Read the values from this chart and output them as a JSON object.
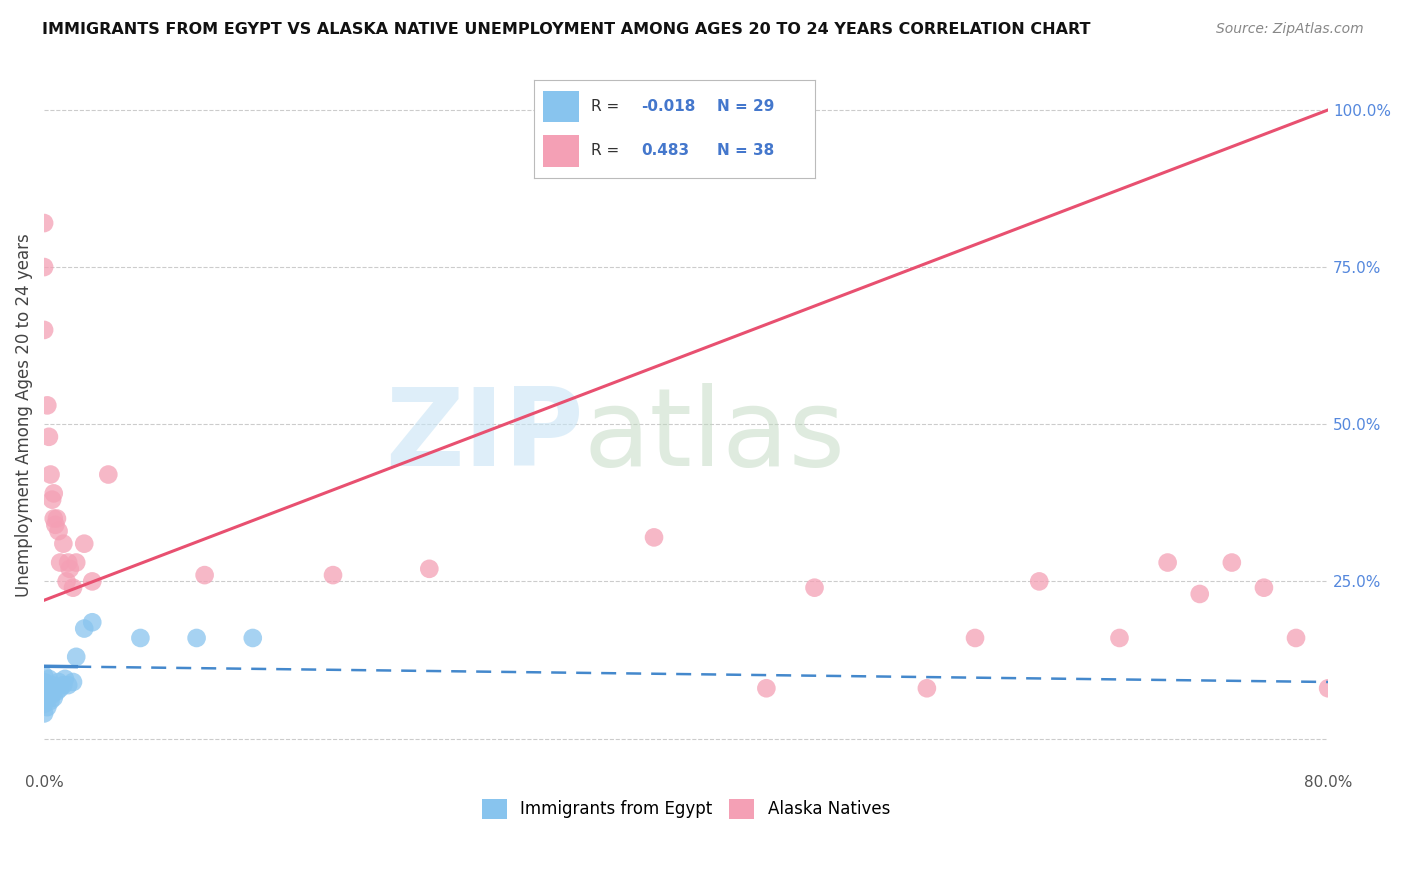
{
  "title": "IMMIGRANTS FROM EGYPT VS ALASKA NATIVE UNEMPLOYMENT AMONG AGES 20 TO 24 YEARS CORRELATION CHART",
  "source": "Source: ZipAtlas.com",
  "ylabel": "Unemployment Among Ages 20 to 24 years",
  "xlim": [
    0.0,
    0.8
  ],
  "ylim": [
    -0.05,
    1.08
  ],
  "yticks_right": [
    0.0,
    0.25,
    0.5,
    0.75,
    1.0
  ],
  "yticklabels_right": [
    "",
    "25.0%",
    "50.0%",
    "75.0%",
    "100.0%"
  ],
  "legend_R1": "-0.018",
  "legend_N1": "29",
  "legend_R2": "0.483",
  "legend_N2": "38",
  "blue_color": "#88C4EE",
  "pink_color": "#F4A0B5",
  "trend_blue_color": "#4488CC",
  "trend_pink_color": "#E85070",
  "blue_scatter_x": [
    0.0,
    0.0,
    0.0,
    0.0,
    0.0,
    0.0,
    0.002,
    0.002,
    0.003,
    0.003,
    0.004,
    0.004,
    0.005,
    0.005,
    0.006,
    0.006,
    0.008,
    0.009,
    0.01,
    0.012,
    0.013,
    0.015,
    0.018,
    0.02,
    0.025,
    0.03,
    0.06,
    0.095,
    0.13
  ],
  "blue_scatter_y": [
    0.04,
    0.055,
    0.065,
    0.075,
    0.09,
    0.1,
    0.05,
    0.065,
    0.08,
    0.095,
    0.06,
    0.075,
    0.07,
    0.085,
    0.065,
    0.08,
    0.075,
    0.09,
    0.08,
    0.085,
    0.095,
    0.085,
    0.09,
    0.13,
    0.175,
    0.185,
    0.16,
    0.16,
    0.16
  ],
  "pink_scatter_x": [
    0.0,
    0.0,
    0.0,
    0.002,
    0.003,
    0.004,
    0.005,
    0.006,
    0.006,
    0.007,
    0.008,
    0.009,
    0.01,
    0.012,
    0.014,
    0.015,
    0.016,
    0.018,
    0.02,
    0.025,
    0.03,
    0.04,
    0.1,
    0.18,
    0.24,
    0.38,
    0.45,
    0.48,
    0.55,
    0.58,
    0.62,
    0.67,
    0.7,
    0.72,
    0.74,
    0.76,
    0.78,
    0.8
  ],
  "pink_scatter_y": [
    0.65,
    0.75,
    0.82,
    0.53,
    0.48,
    0.42,
    0.38,
    0.35,
    0.39,
    0.34,
    0.35,
    0.33,
    0.28,
    0.31,
    0.25,
    0.28,
    0.27,
    0.24,
    0.28,
    0.31,
    0.25,
    0.42,
    0.26,
    0.26,
    0.27,
    0.32,
    0.08,
    0.24,
    0.08,
    0.16,
    0.25,
    0.16,
    0.28,
    0.23,
    0.28,
    0.24,
    0.16,
    0.08
  ],
  "pink_trend_x0": 0.0,
  "pink_trend_y0": 0.22,
  "pink_trend_x1": 0.8,
  "pink_trend_y1": 1.0,
  "blue_trend_x0": 0.0,
  "blue_trend_y0": 0.115,
  "blue_trend_x1": 0.8,
  "blue_trend_y1": 0.09
}
